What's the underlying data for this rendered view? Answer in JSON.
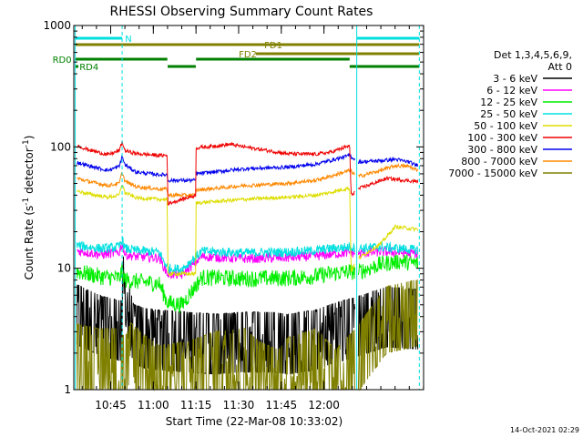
{
  "chart_data": {
    "type": "line",
    "title": "RHESSI Observing Summary Count Rates",
    "xlabel": "Start Time (22-Mar-08 10:33:02)",
    "ylabel_main": "Count Rate (s",
    "ylabel_sup1": "-1",
    "ylabel_mid": " detector",
    "ylabel_sup2": "-1",
    "ylabel_end": ")",
    "y_scale": "log",
    "ylim": [
      1,
      1000
    ],
    "y_ticks": [
      {
        "value": 1,
        "label": "1"
      },
      {
        "value": 10,
        "label": "10"
      },
      {
        "value": 100,
        "label": "100"
      },
      {
        "value": 1000,
        "label": "1000"
      }
    ],
    "xlim_minutes": [
      0,
      123
    ],
    "x_ticks": [
      {
        "minute": 12.97,
        "label": "10:45"
      },
      {
        "minute": 27.97,
        "label": "11:00"
      },
      {
        "minute": 42.97,
        "label": "11:15"
      },
      {
        "minute": 57.97,
        "label": "11:30"
      },
      {
        "minute": 72.97,
        "label": "11:45"
      },
      {
        "minute": 87.97,
        "label": "12:00"
      }
    ],
    "legend": {
      "placement": "right",
      "header": [
        "Det 1,3,4,5,6,9,",
        "Att 0"
      ],
      "entries": [
        {
          "label": "3 - 6 keV",
          "color": "#000000"
        },
        {
          "label": "6 - 12 keV",
          "color": "#ff00ff"
        },
        {
          "label": "12 - 25 keV",
          "color": "#00ee00"
        },
        {
          "label": "25 - 50 keV",
          "color": "#00e0e0"
        },
        {
          "label": "50 - 100 keV",
          "color": "#dddd00"
        },
        {
          "label": "100 - 300 keV",
          "color": "#ee0000"
        },
        {
          "label": "300 - 800 keV",
          "color": "#0000ee"
        },
        {
          "label": "800 - 7000 keV",
          "color": "#ff8800"
        },
        {
          "label": "7000 - 15000 keV",
          "color": "#808000"
        }
      ]
    },
    "gaps_minutes": [
      [
        0,
        1
      ],
      [
        99,
        100
      ],
      [
        121,
        123
      ]
    ],
    "series": [
      {
        "name": "3 - 6 keV",
        "color": "#000000",
        "noise": 0.45,
        "minutes": [
          0,
          10,
          17,
          17.5,
          19,
          21,
          25,
          30,
          40,
          50,
          60,
          70,
          75,
          85,
          90,
          100,
          110,
          120
        ],
        "values": [
          4.5,
          3.5,
          3.2,
          8,
          5,
          3,
          2.8,
          2.7,
          2.6,
          2.5,
          2.6,
          2.6,
          2.5,
          2.7,
          3,
          3.5,
          4.2,
          4
        ]
      },
      {
        "name": "12 - 25 keV",
        "color": "#00ee00",
        "noise": 0.14,
        "minutes": [
          0,
          10,
          16,
          17,
          18,
          22,
          30,
          33,
          38,
          45,
          60,
          75,
          85,
          90,
          97,
          100,
          108,
          115,
          120
        ],
        "values": [
          9.5,
          8.5,
          8.3,
          9.5,
          8,
          7.8,
          7.5,
          5.2,
          5,
          8.4,
          8.2,
          8.3,
          8.6,
          9,
          9.4,
          9.3,
          10.8,
          11.5,
          11
        ]
      },
      {
        "name": "6 - 12 keV",
        "color": "#ff00ff",
        "noise": 0.08,
        "minutes": [
          0,
          10,
          16,
          17,
          18,
          22,
          30,
          33,
          38,
          45,
          60,
          75,
          85,
          90,
          97,
          100,
          108,
          115,
          120
        ],
        "values": [
          14,
          13,
          13.5,
          16,
          13,
          12.5,
          12.2,
          9,
          8.8,
          12.5,
          12,
          12.2,
          12.6,
          13,
          13.5,
          13.2,
          13.7,
          13.5,
          13.2
        ]
      },
      {
        "name": "25 - 50 keV",
        "color": "#00e0e0",
        "noise": 0.08,
        "minutes": [
          0,
          10,
          16,
          17,
          18,
          22,
          30,
          33,
          38,
          45,
          60,
          75,
          85,
          90,
          97,
          100,
          108,
          115,
          120
        ],
        "values": [
          15.5,
          14.5,
          15,
          17.5,
          14.5,
          14,
          13.6,
          10,
          9.8,
          13.8,
          13.4,
          13.6,
          14,
          14.5,
          15,
          14.6,
          15,
          14.5,
          14.2
        ]
      },
      {
        "name": "50 - 100 keV",
        "color": "#dddd00",
        "noise": 0.03,
        "minutes": [
          0,
          5,
          12,
          16,
          17,
          18,
          22,
          30,
          32.9,
          33,
          42.9,
          43,
          60,
          75,
          85,
          90,
          97,
          97.5,
          100,
          108,
          113,
          120
        ],
        "values": [
          44,
          41,
          38.5,
          40,
          50,
          42,
          38,
          37,
          37,
          9,
          9,
          34.5,
          37,
          38.5,
          40,
          42,
          46,
          9.5,
          12,
          16,
          22,
          21
        ]
      },
      {
        "name": "800 - 7000 keV",
        "color": "#ff8800",
        "noise": 0.03,
        "minutes": [
          0,
          5,
          12,
          16,
          17,
          18,
          22,
          30,
          32.9,
          33,
          42.9,
          43,
          60,
          75,
          85,
          90,
          97,
          100,
          108,
          113,
          118,
          120
        ],
        "values": [
          56,
          52,
          48,
          50,
          62,
          52,
          47,
          45,
          45,
          40,
          40,
          44,
          48,
          50,
          53,
          57,
          64,
          57,
          64,
          70,
          69,
          65
        ]
      },
      {
        "name": "300 - 800 keV",
        "color": "#0000ee",
        "noise": 0.03,
        "minutes": [
          0,
          5,
          12,
          16,
          17,
          18,
          22,
          30,
          32.9,
          33,
          42.9,
          43,
          60,
          75,
          85,
          90,
          97,
          100,
          108,
          113,
          118,
          120
        ],
        "values": [
          76,
          70,
          64,
          69,
          84,
          71,
          62,
          59,
          59,
          53,
          53,
          60,
          66,
          68,
          72,
          77,
          85,
          75,
          77,
          79,
          75,
          71
        ]
      },
      {
        "name": "100 - 300 keV",
        "color": "#ee0000",
        "noise": 0.03,
        "minutes": [
          0,
          5,
          12,
          16,
          17,
          18,
          22,
          30,
          32.9,
          33,
          38,
          42.9,
          43,
          55,
          60,
          75,
          85,
          90,
          97,
          97.5,
          100,
          110,
          120
        ],
        "values": [
          105,
          95,
          86,
          93,
          110,
          93,
          88,
          85,
          85,
          34,
          37,
          40,
          98,
          105,
          100,
          88,
          87,
          90,
          102,
          40,
          45,
          55,
          52
        ]
      },
      {
        "name": "7000 - 15000 keV",
        "color": "#808000",
        "noise": 0.5,
        "minutes": [
          0,
          8,
          16,
          18,
          20,
          25,
          30,
          40,
          50,
          60,
          65,
          72,
          75,
          85,
          92,
          100,
          110,
          120
        ],
        "values": [
          2,
          1.8,
          1.8,
          1.5,
          2,
          1.6,
          1.3,
          1.4,
          1.7,
          1.8,
          1.4,
          1.2,
          1.5,
          1.8,
          1.2,
          1.9,
          4,
          4.5
        ]
      }
    ],
    "vertical_lines": [
      {
        "minute": 0.5,
        "style": "solid",
        "color": "#00e0e0"
      },
      {
        "minute": 17,
        "style": "dashed",
        "color": "#00e0e0"
      },
      {
        "minute": 99.5,
        "style": "solid",
        "color": "#00e0e0"
      },
      {
        "minute": 121.5,
        "style": "dashed",
        "color": "#00e0e0"
      }
    ],
    "flag_bars": [
      {
        "label": "N",
        "color": "#00e0e0",
        "segments": [
          [
            0.5,
            17
          ],
          [
            99.5,
            121.5
          ]
        ],
        "label_minute": 18
      },
      {
        "label": "FD1",
        "color": "#808000",
        "segments": [
          [
            0.5,
            121.5
          ]
        ],
        "label_minute": 67
      },
      {
        "label": "FD2",
        "color": "#808000",
        "segments": [
          [
            64,
            121.5
          ]
        ],
        "label_minute": 58
      },
      {
        "label": "RD0",
        "color": "#008000",
        "segments": [
          [
            0.5,
            32.9
          ],
          [
            43,
            97
          ]
        ],
        "label_minute": -7.5
      },
      {
        "label": "RD4",
        "color": "#008000",
        "segments": [
          [
            0.5,
            1.6
          ],
          [
            33,
            42.9
          ],
          [
            97,
            121.5
          ]
        ],
        "label_minute": 2
      }
    ]
  },
  "footer": {
    "timestamp": "14-Oct-2021 02:29"
  }
}
